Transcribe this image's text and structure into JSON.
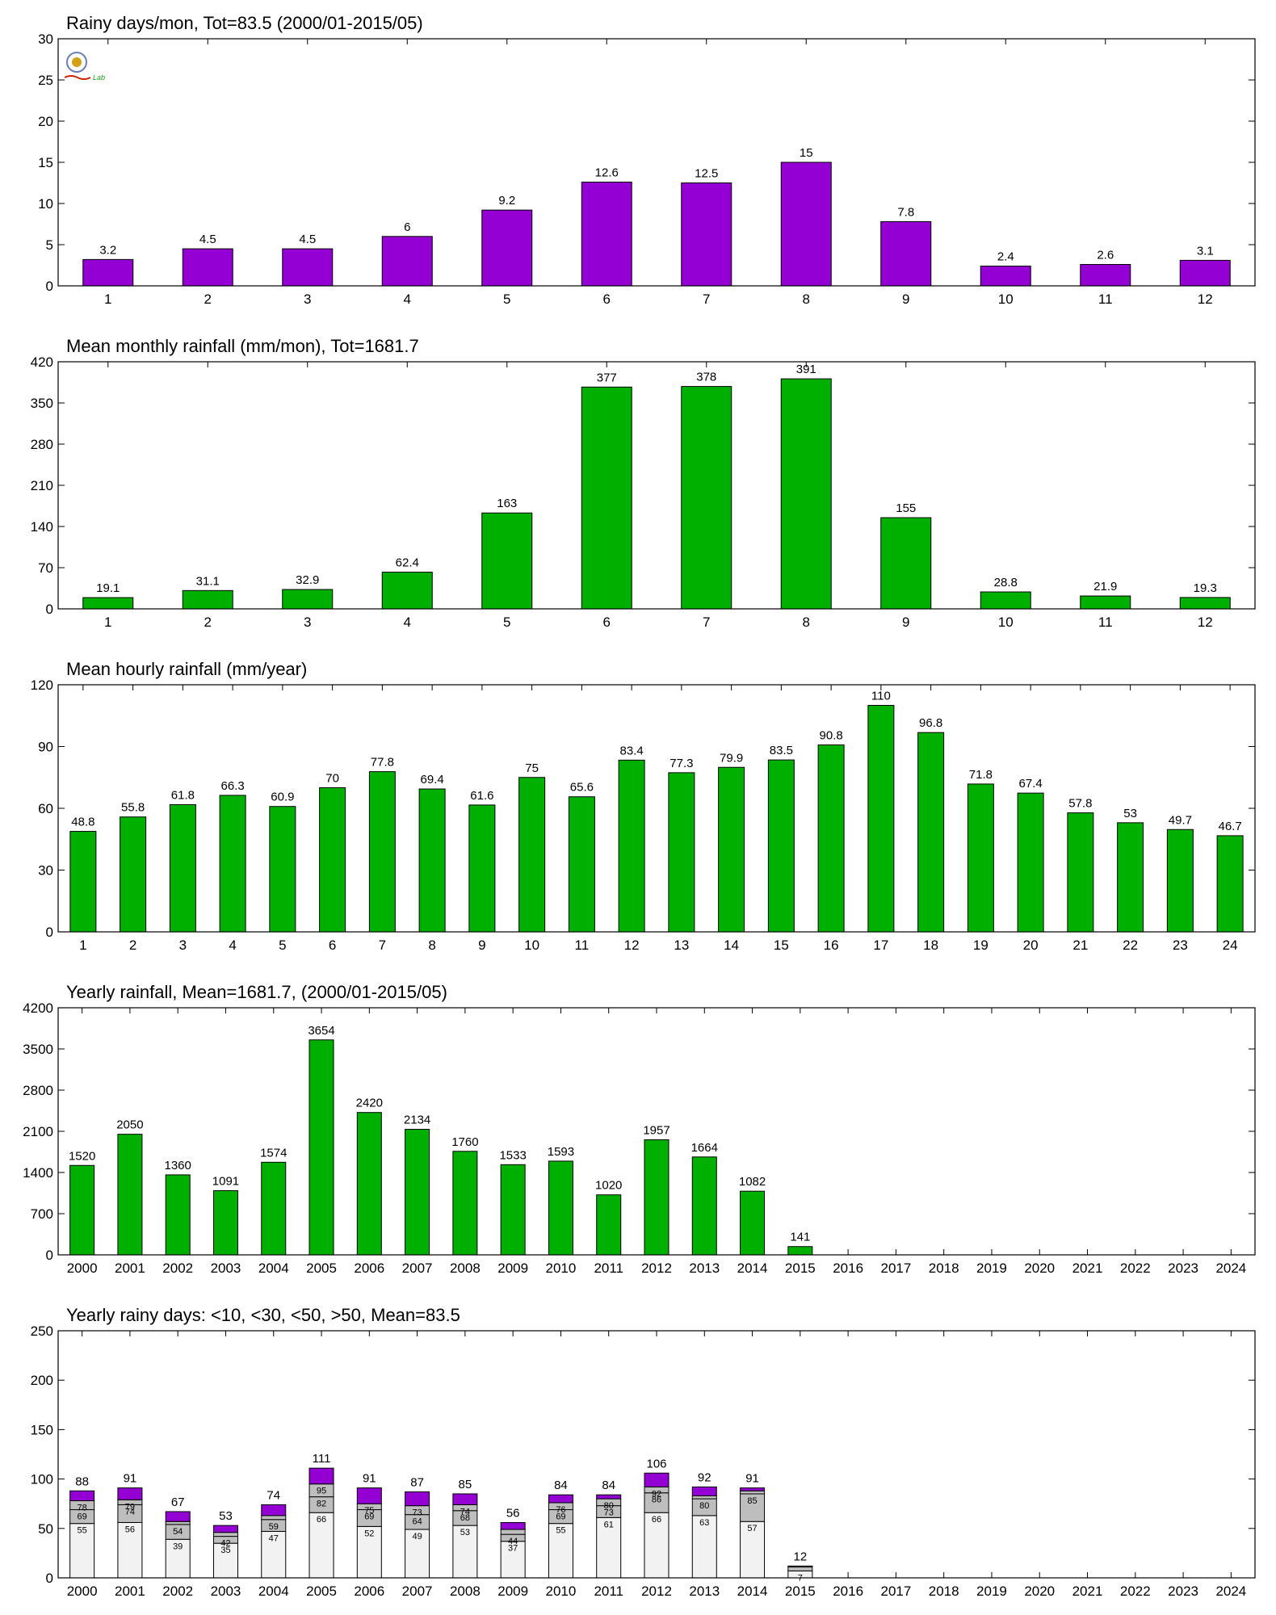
{
  "colors": {
    "purple": "#9400d3",
    "green": "#00b000",
    "lightgray": "#f2f2f2",
    "gray": "#bebebe",
    "frame": "#000000"
  },
  "chart_data": [
    {
      "type": "bar",
      "title": "Rainy days/mon, Tot=83.5 (2000/01-2015/05)",
      "categories": [
        "1",
        "2",
        "3",
        "4",
        "5",
        "6",
        "7",
        "8",
        "9",
        "10",
        "11",
        "12"
      ],
      "values": [
        3.2,
        4.5,
        4.5,
        6,
        9.2,
        12.6,
        12.5,
        15,
        7.8,
        2.4,
        2.6,
        3.1
      ],
      "labels": [
        "3.2",
        "4.5",
        "4.5",
        "6",
        "9.2",
        "12.6",
        "12.5",
        "15",
        "7.8",
        "2.4",
        "2.6",
        "3.1"
      ],
      "ylim": [
        0,
        30
      ],
      "yticks": [
        "0",
        "5",
        "10",
        "15",
        "20",
        "25",
        "30"
      ],
      "color": "#9400d3",
      "logo_text": "Lab"
    },
    {
      "type": "bar",
      "title": "Mean monthly rainfall (mm/mon), Tot=1681.7",
      "categories": [
        "1",
        "2",
        "3",
        "4",
        "5",
        "6",
        "7",
        "8",
        "9",
        "10",
        "11",
        "12"
      ],
      "values": [
        19.1,
        31.1,
        32.9,
        62.4,
        163,
        377,
        378,
        391,
        155,
        28.8,
        21.9,
        19.3
      ],
      "labels": [
        "19.1",
        "31.1",
        "32.9",
        "62.4",
        "163",
        "377",
        "378",
        "391",
        "155",
        "28.8",
        "21.9",
        "19.3"
      ],
      "ylim": [
        0,
        420
      ],
      "yticks": [
        "0",
        "70",
        "140",
        "210",
        "280",
        "350",
        "420"
      ],
      "color": "#00b000"
    },
    {
      "type": "bar",
      "title": "Mean hourly rainfall (mm/year)",
      "categories": [
        "1",
        "2",
        "3",
        "4",
        "5",
        "6",
        "7",
        "8",
        "9",
        "10",
        "11",
        "12",
        "13",
        "14",
        "15",
        "16",
        "17",
        "18",
        "19",
        "20",
        "21",
        "22",
        "23",
        "24"
      ],
      "values": [
        48.8,
        55.8,
        61.8,
        66.3,
        60.9,
        70,
        77.8,
        69.4,
        61.6,
        75,
        65.6,
        83.4,
        77.3,
        79.9,
        83.5,
        90.8,
        110,
        96.8,
        71.8,
        67.4,
        57.8,
        53,
        49.7,
        46.7
      ],
      "labels": [
        "48.8",
        "55.8",
        "61.8",
        "66.3",
        "60.9",
        "70",
        "77.8",
        "69.4",
        "61.6",
        "75",
        "65.6",
        "83.4",
        "77.3",
        "79.9",
        "83.5",
        "90.8",
        "110",
        "96.8",
        "71.8",
        "67.4",
        "57.8",
        "53",
        "49.7",
        "46.7"
      ],
      "ylim": [
        0,
        120
      ],
      "yticks": [
        "0",
        "30",
        "60",
        "90",
        "120"
      ],
      "color": "#00b000"
    },
    {
      "type": "bar",
      "title": "Yearly rainfall, Mean=1681.7, (2000/01-2015/05)",
      "categories": [
        "2000",
        "2001",
        "2002",
        "2003",
        "2004",
        "2005",
        "2006",
        "2007",
        "2008",
        "2009",
        "2010",
        "2011",
        "2012",
        "2013",
        "2014",
        "2015",
        "2016",
        "2017",
        "2018",
        "2019",
        "2020",
        "2021",
        "2022",
        "2023",
        "2024"
      ],
      "values": [
        1520,
        2050,
        1360,
        1091,
        1574,
        3654,
        2420,
        2134,
        1760,
        1533,
        1593,
        1020,
        1957,
        1664,
        1082,
        141,
        null,
        null,
        null,
        null,
        null,
        null,
        null,
        null,
        null
      ],
      "labels": [
        "1520",
        "2050",
        "1360",
        "1091",
        "1574",
        "3654",
        "2420",
        "2134",
        "1760",
        "1533",
        "1593",
        "1020",
        "1957",
        "1664",
        "1082",
        "141",
        "",
        "",
        "",
        "",
        "",
        "",
        "",
        "",
        ""
      ],
      "ylim": [
        0,
        4200
      ],
      "yticks": [
        "0",
        "700",
        "1400",
        "2100",
        "2800",
        "3500",
        "4200"
      ],
      "color": "#00b000"
    },
    {
      "type": "bar",
      "stacked": true,
      "title": "Yearly rainy days: <10, <30, <50, >50, Mean=83.5",
      "categories": [
        "2000",
        "2001",
        "2002",
        "2003",
        "2004",
        "2005",
        "2006",
        "2007",
        "2008",
        "2009",
        "2010",
        "2011",
        "2012",
        "2013",
        "2014",
        "2015",
        "2016",
        "2017",
        "2018",
        "2019",
        "2020",
        "2021",
        "2022",
        "2023",
        "2024"
      ],
      "cumulative": [
        [
          55,
          69,
          78,
          88
        ],
        [
          56,
          74,
          79,
          91
        ],
        [
          39,
          54,
          57,
          67
        ],
        [
          35,
          42,
          46,
          53
        ],
        [
          47,
          59,
          63,
          74
        ],
        [
          66,
          82,
          95,
          111
        ],
        [
          52,
          69,
          75,
          91
        ],
        [
          49,
          64,
          73,
          87
        ],
        [
          53,
          68,
          74,
          85
        ],
        [
          37,
          44,
          49,
          56
        ],
        [
          55,
          69,
          76,
          84
        ],
        [
          61,
          73,
          80,
          84
        ],
        [
          66,
          86,
          92,
          106
        ],
        [
          63,
          80,
          83,
          92
        ],
        [
          57,
          85,
          88,
          91
        ],
        [
          7,
          11,
          12,
          12
        ],
        null,
        null,
        null,
        null,
        null,
        null,
        null,
        null,
        null
      ],
      "segment_labels": [
        [
          "55",
          "69",
          "78"
        ],
        [
          "56",
          "74",
          "79"
        ],
        [
          "39",
          "54",
          ""
        ],
        [
          "35",
          "42",
          ""
        ],
        [
          "47",
          "59",
          ""
        ],
        [
          "66",
          "82",
          "95"
        ],
        [
          "52",
          "69",
          "75"
        ],
        [
          "49",
          "64",
          "73"
        ],
        [
          "53",
          "68",
          "74"
        ],
        [
          "37",
          "44",
          ""
        ],
        [
          "55",
          "69",
          "76"
        ],
        [
          "61",
          "73",
          "80"
        ],
        [
          "66",
          "86",
          "92"
        ],
        [
          "63",
          "80",
          ""
        ],
        [
          "57",
          "85",
          ""
        ],
        [
          "7",
          "",
          ""
        ],
        null,
        null,
        null,
        null,
        null,
        null,
        null,
        null,
        null
      ],
      "total_labels": [
        "88",
        "91",
        "67",
        "53",
        "74",
        "111",
        "91",
        "87",
        "85",
        "56",
        "84",
        "84",
        "106",
        "92",
        "91",
        "12",
        "",
        "",
        "",
        "",
        "",
        "",
        "",
        "",
        ""
      ],
      "ylim": [
        0,
        250
      ],
      "yticks": [
        "0",
        "50",
        "100",
        "150",
        "200",
        "250"
      ],
      "series_colors": [
        "#f2f2f2",
        "#bebebe",
        "#bebebe",
        "#9400d3"
      ]
    }
  ]
}
